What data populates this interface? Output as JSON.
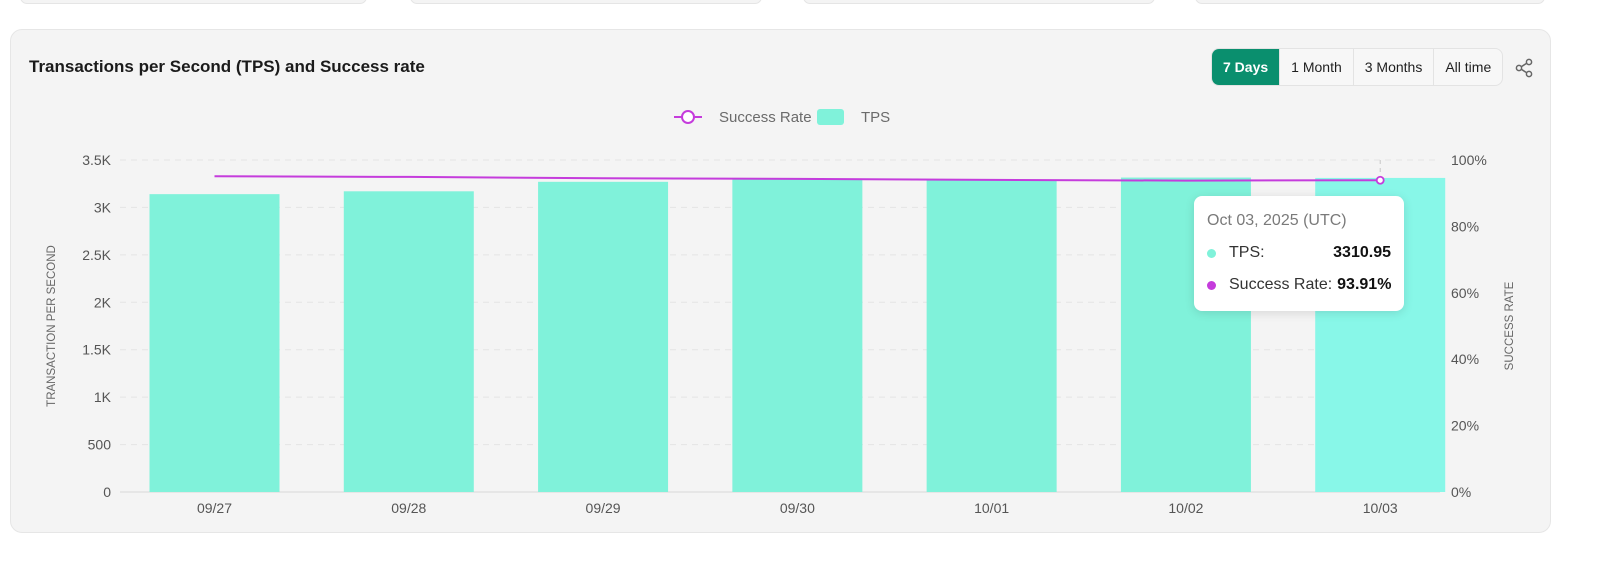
{
  "title": "Transactions per Second (TPS) and Success rate",
  "range_buttons": [
    {
      "label": "7 Days",
      "active": true
    },
    {
      "label": "1 Month",
      "active": false
    },
    {
      "label": "3 Months",
      "active": false
    },
    {
      "label": "All time",
      "active": false
    }
  ],
  "share_icon": "share-icon",
  "colors": {
    "tps_bar": "#80f2da",
    "tps_bar_highlight": "#88f7e8",
    "success_line": "#c53cdc",
    "accent": "#0a8f6e"
  },
  "tooltip": {
    "date": "Oct 03, 2025 (UTC)",
    "tps_label": "TPS:",
    "tps_value": "3310.95",
    "sr_label": "Success Rate:",
    "sr_value": "93.91%"
  },
  "chart_data": {
    "type": "bar",
    "title": "Transactions per Second (TPS) and Success rate",
    "categories": [
      "09/27",
      "09/28",
      "09/29",
      "09/30",
      "10/01",
      "10/02",
      "10/03"
    ],
    "series": [
      {
        "name": "TPS",
        "type": "bar",
        "axis": "left",
        "values": [
          3140,
          3170,
          3270,
          3300,
          3285,
          3315,
          3310.95
        ]
      },
      {
        "name": "Success Rate",
        "type": "line",
        "axis": "right",
        "unit": "%",
        "values": [
          95.1,
          94.9,
          94.5,
          94.3,
          94.0,
          93.8,
          93.91
        ]
      }
    ],
    "ylabel": "TRANSACTION PER SECOND",
    "ylabel_right": "SUCCESS RATE",
    "ylim": [
      0,
      3500
    ],
    "ylim_right": [
      0,
      100
    ],
    "y_ticks": [
      "0",
      "500",
      "1K",
      "1.5K",
      "2K",
      "2.5K",
      "3K",
      "3.5K"
    ],
    "y_right_ticks": [
      "0%",
      "20%",
      "40%",
      "60%",
      "80%",
      "100%"
    ],
    "legend": [
      "Success Rate",
      "TPS"
    ],
    "legend_position": "top-center",
    "grid": true,
    "highlighted_category": "10/03"
  }
}
